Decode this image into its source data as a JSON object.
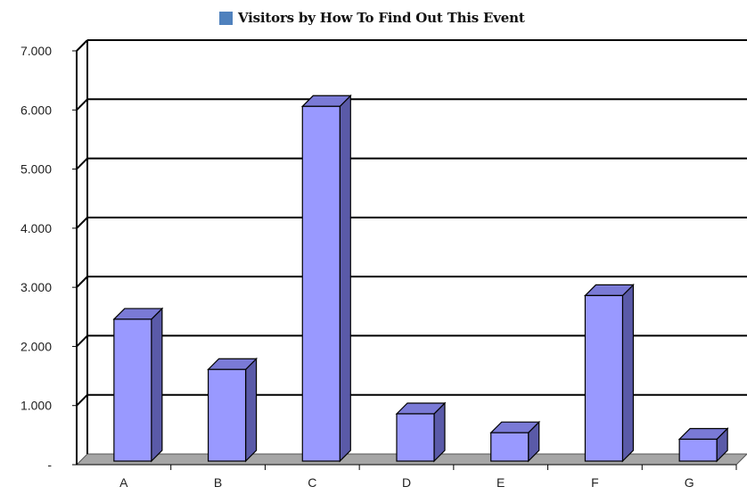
{
  "chart_data": {
    "type": "bar",
    "title": "",
    "xlabel": "",
    "ylabel": "",
    "categories": [
      "A",
      "B",
      "C",
      "D",
      "E",
      "F",
      "G"
    ],
    "series": [
      {
        "name": "Visitors by How To Find Out This Event",
        "values": [
          2400,
          1550,
          6000,
          800,
          480,
          2800,
          370
        ]
      }
    ],
    "ylim": [
      0,
      7000
    ],
    "yticks": [
      {
        "value": 0,
        "label": "-"
      },
      {
        "value": 1000,
        "label": "1.000"
      },
      {
        "value": 2000,
        "label": "2.000"
      },
      {
        "value": 3000,
        "label": "3.000"
      },
      {
        "value": 4000,
        "label": "4.000"
      },
      {
        "value": 5000,
        "label": "5.000"
      },
      {
        "value": 6000,
        "label": "6.000"
      },
      {
        "value": 7000,
        "label": "7.000"
      }
    ],
    "grid": true,
    "legend_position": "top",
    "colors": {
      "bar_front": "#9999ff",
      "bar_side": "#5a5aa8",
      "bar_top": "#7a7ad6",
      "legend_swatch": "#4f81bd",
      "floor": "#a6a6a6",
      "gridline": "#000000"
    }
  }
}
